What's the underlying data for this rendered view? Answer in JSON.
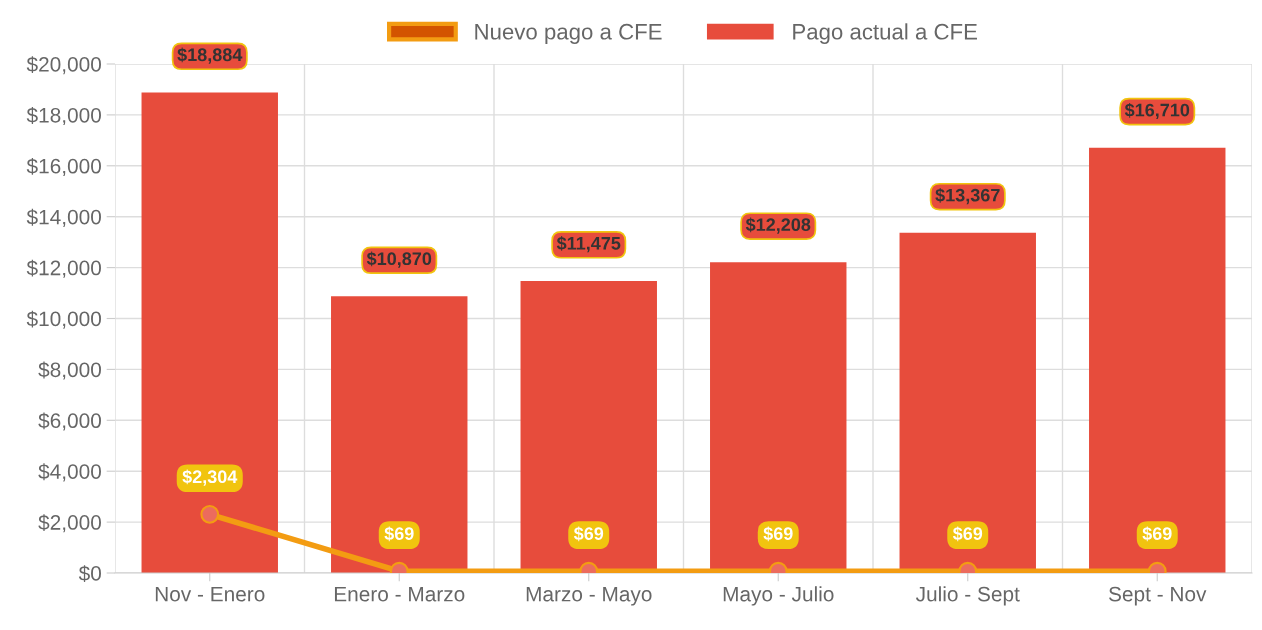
{
  "chart_data": {
    "type": "bar",
    "categories": [
      "Nov - Enero",
      "Enero - Marzo",
      "Marzo - Mayo",
      "Mayo - Julio",
      "Julio - Sept",
      "Sept - Nov"
    ],
    "series": [
      {
        "name": "Nuevo pago a CFE",
        "type": "line",
        "color": "#f39c12",
        "values": [
          2304,
          69,
          69,
          69,
          69,
          69
        ],
        "value_labels": [
          "$2,304",
          "$69",
          "$69",
          "$69",
          "$69",
          "$69"
        ]
      },
      {
        "name": "Pago actual a CFE",
        "color": "#e74c3c",
        "values": [
          18884,
          10870,
          11475,
          12208,
          13367,
          16710
        ],
        "value_labels": [
          "$18,884",
          "$10,870",
          "$11,475",
          "$12,208",
          "$13,367",
          "$16,710"
        ]
      }
    ],
    "ylim": [
      0,
      20000
    ],
    "yticks": [
      {
        "value": 0,
        "label": "$0"
      },
      {
        "value": 2000,
        "label": "$2,000"
      },
      {
        "value": 4000,
        "label": "$4,000"
      },
      {
        "value": 6000,
        "label": "$6,000"
      },
      {
        "value": 8000,
        "label": "$8,000"
      },
      {
        "value": 10000,
        "label": "$10,000"
      },
      {
        "value": 12000,
        "label": "$12,000"
      },
      {
        "value": 14000,
        "label": "$14,000"
      },
      {
        "value": 16000,
        "label": "$16,000"
      },
      {
        "value": 18000,
        "label": "$18,000"
      },
      {
        "value": 20000,
        "label": "$20,000"
      }
    ],
    "grid": true,
    "legend": "top",
    "marker": "circle",
    "line_style": "solid"
  }
}
